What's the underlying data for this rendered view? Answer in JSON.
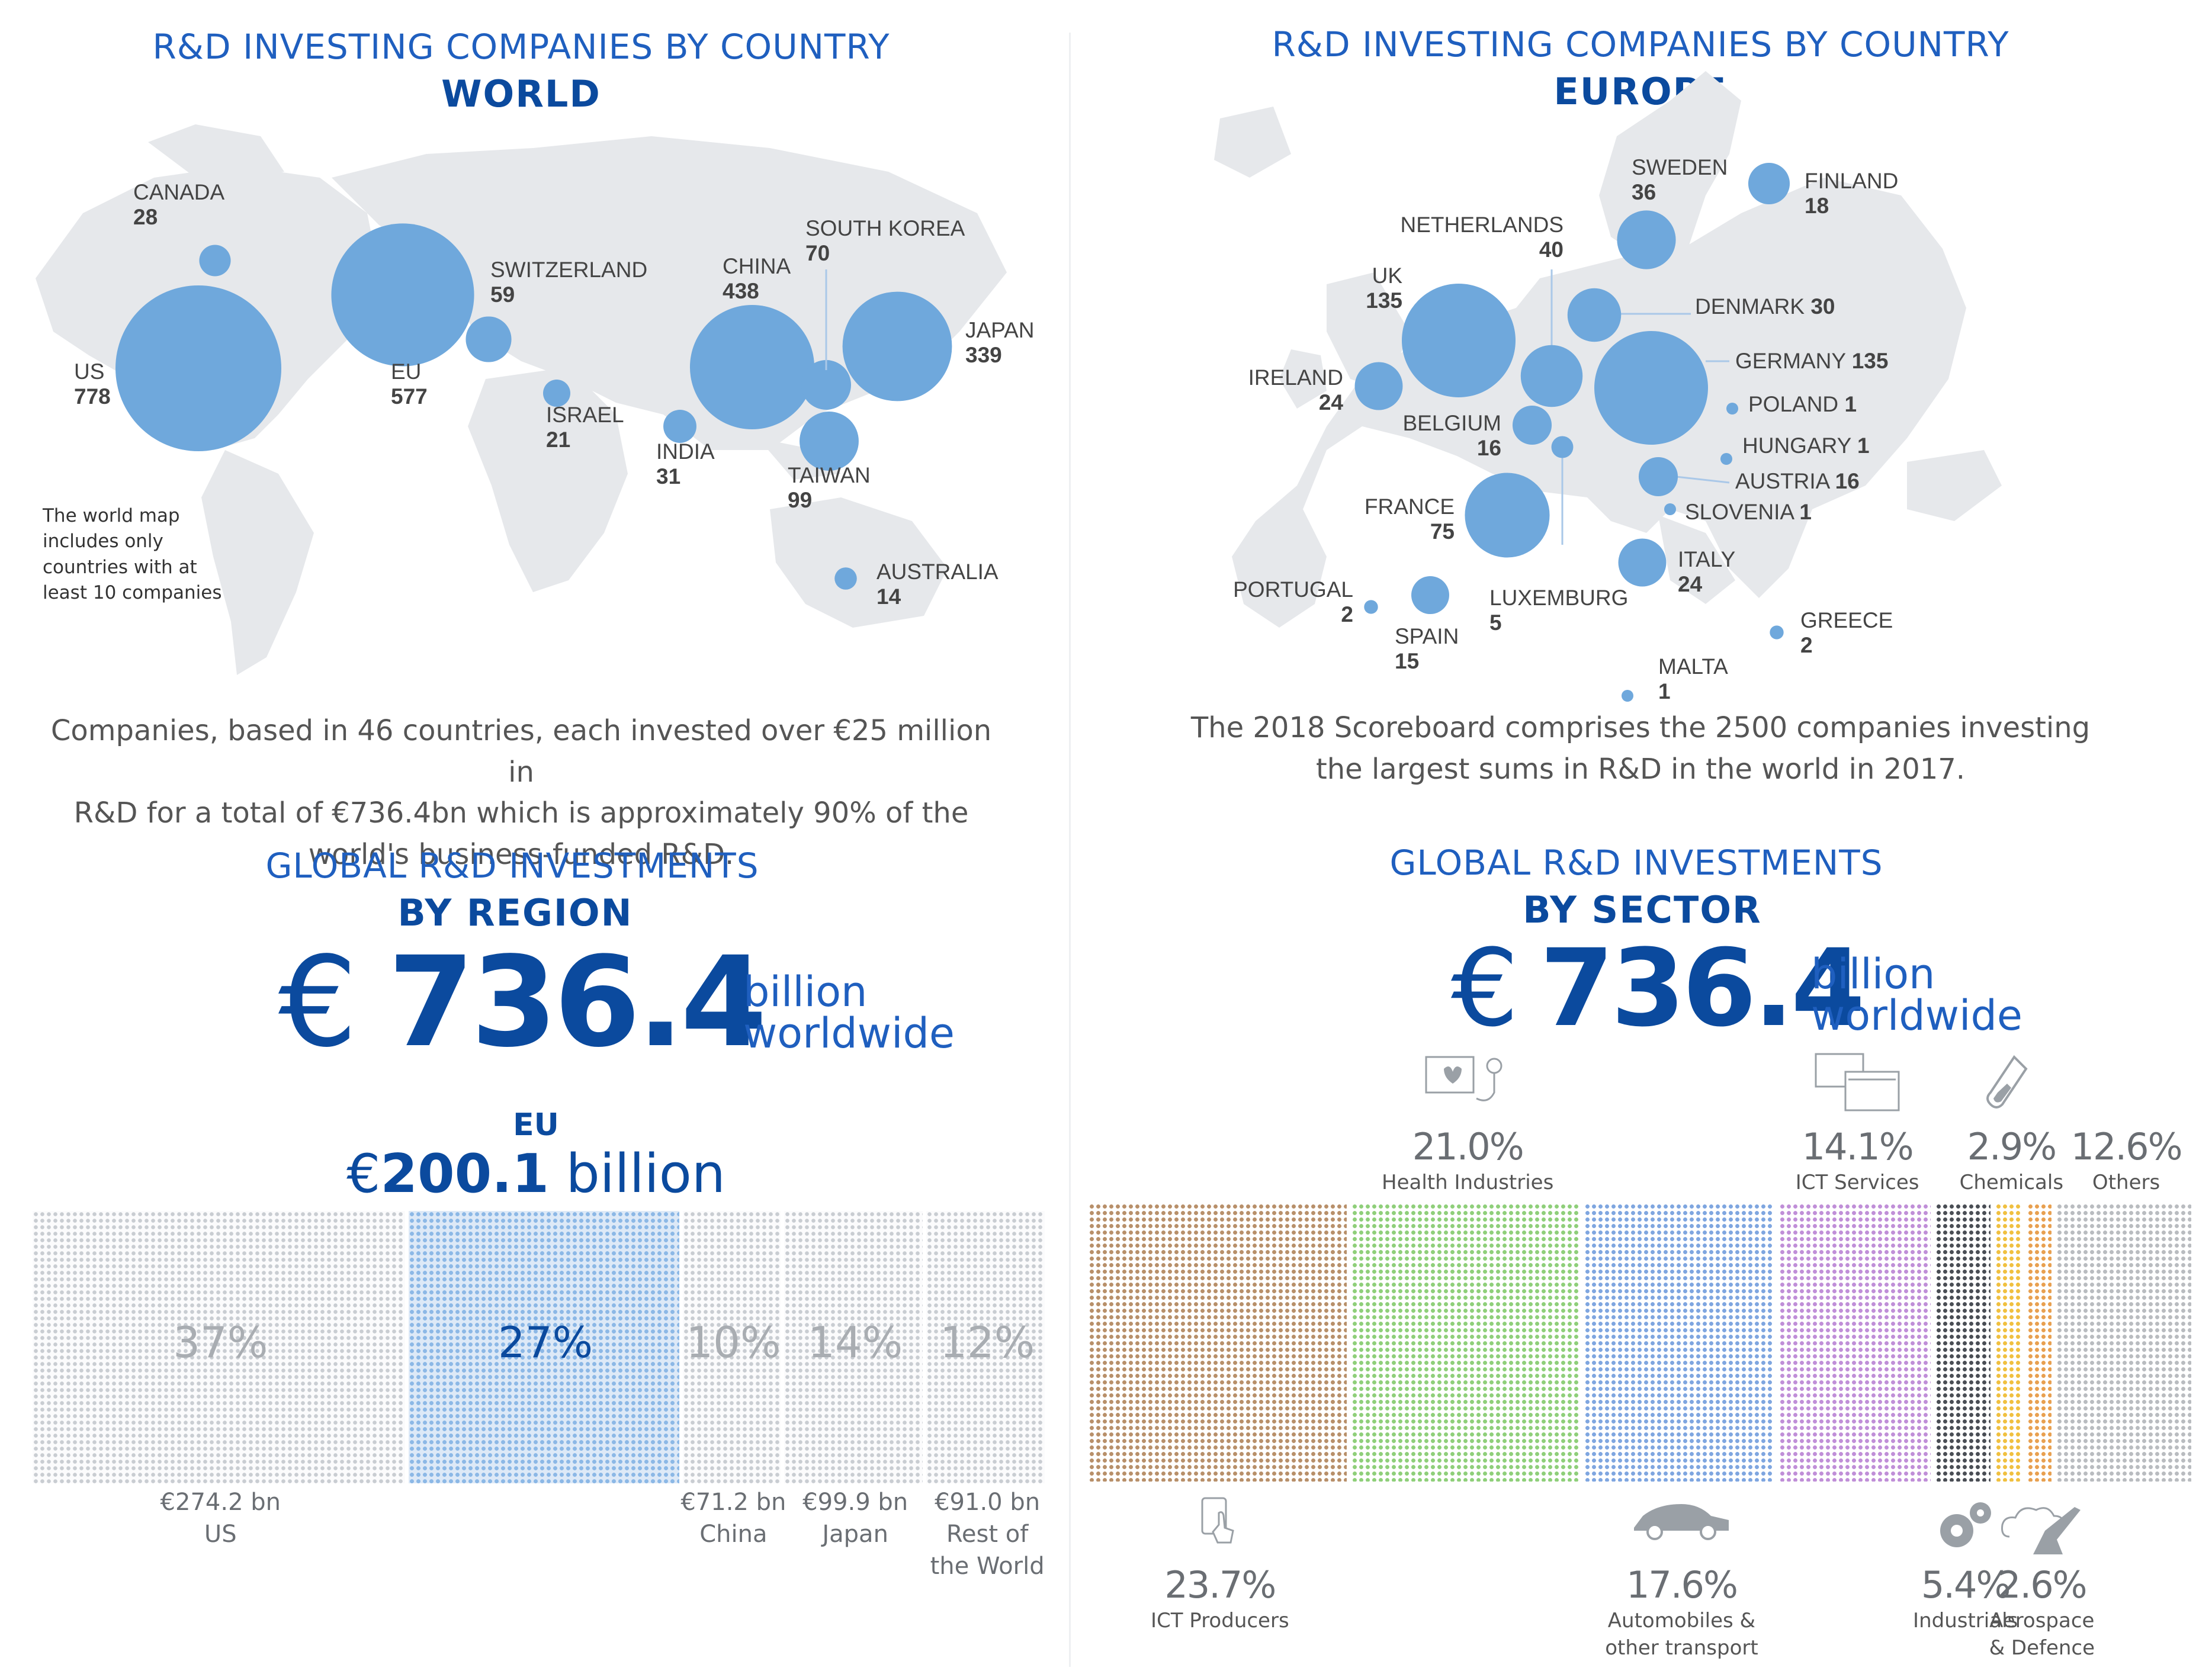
{
  "world_panel": {
    "title": "R&D INVESTING COMPANIES BY COUNTRY",
    "subtitle": "WORLD",
    "note": [
      "The world map",
      "includes only",
      "countries with at",
      "least 10 companies"
    ],
    "countries": [
      {
        "name": "US",
        "value": 778
      },
      {
        "name": "EU",
        "value": 577
      },
      {
        "name": "CHINA",
        "value": 438
      },
      {
        "name": "JAPAN",
        "value": 339
      },
      {
        "name": "TAIWAN",
        "value": 99
      },
      {
        "name": "SOUTH KOREA",
        "value": 70
      },
      {
        "name": "SWITZERLAND",
        "value": 59
      },
      {
        "name": "INDIA",
        "value": 31
      },
      {
        "name": "CANADA",
        "value": 28
      },
      {
        "name": "ISRAEL",
        "value": 21
      },
      {
        "name": "AUSTRALIA",
        "value": 14
      }
    ],
    "description": [
      "Companies, based in 46 countries, each invested over €25 million in",
      "R&D for a total of €736.4bn which is approximately 90% of the",
      "world's business-funded R&D."
    ]
  },
  "europe_panel": {
    "title": "R&D INVESTING COMPANIES BY COUNTRY",
    "subtitle": "EUROPE",
    "countries": [
      {
        "name": "UK",
        "value": 135
      },
      {
        "name": "GERMANY",
        "value": 135
      },
      {
        "name": "FRANCE",
        "value": 75
      },
      {
        "name": "NETHERLANDS",
        "value": 40
      },
      {
        "name": "SWEDEN",
        "value": 36
      },
      {
        "name": "DENMARK",
        "value": 30
      },
      {
        "name": "IRELAND",
        "value": 24
      },
      {
        "name": "ITALY",
        "value": 24
      },
      {
        "name": "FINLAND",
        "value": 18
      },
      {
        "name": "BELGIUM",
        "value": 16
      },
      {
        "name": "AUSTRIA",
        "value": 16
      },
      {
        "name": "SPAIN",
        "value": 15
      },
      {
        "name": "LUXEMBURG",
        "value": 5
      },
      {
        "name": "PORTUGAL",
        "value": 2
      },
      {
        "name": "GREECE",
        "value": 2
      },
      {
        "name": "POLAND",
        "value": 1
      },
      {
        "name": "HUNGARY",
        "value": 1
      },
      {
        "name": "SLOVENIA",
        "value": 1
      },
      {
        "name": "MALTA",
        "value": 1
      }
    ],
    "description": [
      "The 2018 Scoreboard comprises the 2500 companies investing",
      "the largest sums in R&D in the world in 2017."
    ]
  },
  "region_panel": {
    "title": "GLOBAL R&D INVESTMENTS",
    "subtitle": "BY REGION",
    "total_symbol": "€",
    "total": "736.4",
    "unit_line1": "billion",
    "unit_line2": "worldwide",
    "eu_label": "EU",
    "eu_value_prefix": "€",
    "eu_value": "200.1",
    "eu_value_suffix": " billion"
  },
  "sector_panel": {
    "title": "GLOBAL R&D INVESTMENTS",
    "subtitle": "BY SECTOR",
    "total_symbol": "€",
    "total": "736.4",
    "unit_line1": "billion",
    "unit_line2": "worldwide"
  },
  "chart_data": [
    {
      "type": "bar",
      "title": "GLOBAL R&D INVESTMENTS BY REGION",
      "categories": [
        "US",
        "EU",
        "China",
        "Japan",
        "Rest of the World"
      ],
      "percent_labels": [
        "37%",
        "27%",
        "10%",
        "14%",
        "12%"
      ],
      "percents": [
        37,
        27,
        10,
        14,
        12
      ],
      "amount_labels": [
        "€274.2 bn",
        "€200.1 bn",
        "€71.2 bn",
        "€99.9 bn",
        "€91.0 bn"
      ],
      "name_lines": [
        [
          "US"
        ],
        [],
        [
          "China"
        ],
        [
          "Japan"
        ],
        [
          "Rest of",
          "the World"
        ]
      ]
    },
    {
      "type": "bar",
      "title": "GLOBAL R&D INVESTMENTS BY SECTOR",
      "categories": [
        "ICT Producers",
        "Health Industries",
        "Automobiles & other transport",
        "ICT Services",
        "Industrials",
        "Chemicals",
        "Aerospace & Defence",
        "Others"
      ],
      "percent_labels": [
        "23.7%",
        "21.0%",
        "17.6%",
        "14.1%",
        "5.4%",
        "2.9%",
        "2.6%",
        "12.6%"
      ],
      "percents": [
        23.7,
        21.0,
        17.6,
        14.1,
        5.4,
        2.9,
        2.6,
        12.6
      ],
      "name_lines": [
        [
          "ICT Producers"
        ],
        [
          "Health Industries"
        ],
        [
          "Automobiles &",
          "other transport"
        ],
        [
          "ICT Services"
        ],
        [
          "Industrials"
        ],
        [
          "Chemicals"
        ],
        [
          "Aerospace",
          "& Defence"
        ],
        [
          "Others"
        ]
      ],
      "label_position": [
        "bottom",
        "top",
        "bottom",
        "top",
        "bottom",
        "top",
        "bottom",
        "top"
      ],
      "icons": [
        "tablet-touch-icon",
        "health-monitor-icon",
        "car-icon",
        "screens-icon",
        "gears-icon",
        "test-tube-icon",
        "plane-cloud-icon",
        ""
      ],
      "colors": [
        "#b8906a",
        "#8fcf7a",
        "#7fa6e0",
        "#c08fd8",
        "#4a4e55",
        "#f0c040",
        "#e8a050",
        "#b9bcc0"
      ]
    }
  ]
}
